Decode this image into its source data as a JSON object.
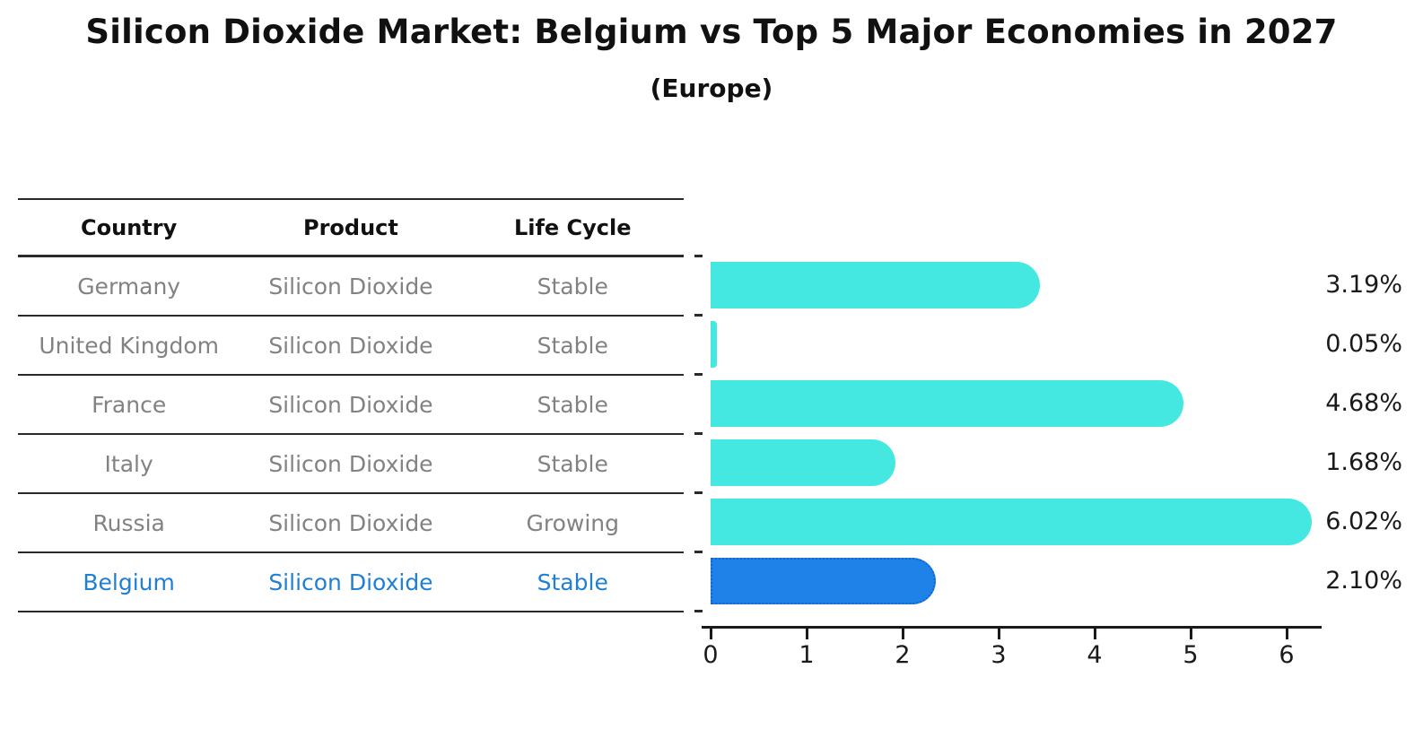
{
  "title": "Silicon Dioxide Market: Belgium vs Top 5 Major Economies in 2027",
  "subtitle": "(Europe)",
  "colors": {
    "bar": "#45e8e1",
    "highlight_bar": "#1e82e8",
    "highlight_bar_border": "#1465cc",
    "highlight_text": "#1f7fd4",
    "row_text": "#828282",
    "header_text": "#111111"
  },
  "table": {
    "headers": [
      "Country",
      "Product",
      "Life Cycle"
    ],
    "rows": [
      {
        "country": "Germany",
        "product": "Silicon Dioxide",
        "life_cycle": "Stable",
        "highlighted": false
      },
      {
        "country": "United Kingdom",
        "product": "Silicon Dioxide",
        "life_cycle": "Stable",
        "highlighted": false
      },
      {
        "country": "France",
        "product": "Silicon Dioxide",
        "life_cycle": "Stable",
        "highlighted": false
      },
      {
        "country": "Italy",
        "product": "Silicon Dioxide",
        "life_cycle": "Stable",
        "highlighted": false
      },
      {
        "country": "Russia",
        "product": "Silicon Dioxide",
        "life_cycle": "Growing",
        "highlighted": false
      },
      {
        "country": "Belgium",
        "product": "Silicon Dioxide",
        "life_cycle": "Stable",
        "highlighted": true
      }
    ]
  },
  "chart_data": {
    "type": "bar",
    "orientation": "horizontal",
    "title": "Silicon Dioxide Market: Belgium vs Top 5 Major Economies in 2027",
    "subtitle": "(Europe)",
    "categories": [
      "Germany",
      "United Kingdom",
      "France",
      "Italy",
      "Russia",
      "Belgium"
    ],
    "values": [
      3.19,
      0.05,
      4.68,
      1.68,
      6.02,
      2.1
    ],
    "value_labels": [
      "3.19%",
      "0.05%",
      "4.68%",
      "1.68%",
      "6.02%",
      "2.10%"
    ],
    "highlight_index": 5,
    "x_ticks": [
      0,
      1,
      2,
      3,
      4,
      5,
      6
    ],
    "xlim": [
      0,
      6.4
    ],
    "xlabel": "",
    "ylabel": "",
    "grid": false,
    "legend": false,
    "bar_color": "#45e8e1",
    "highlight_bar_color": "#1e82e8"
  }
}
